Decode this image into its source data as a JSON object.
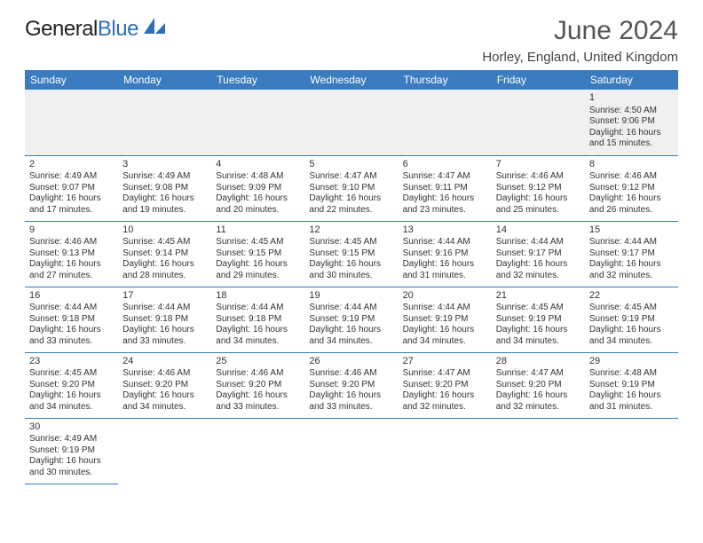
{
  "brand": {
    "part1": "General",
    "part2": "Blue"
  },
  "title": "June 2024",
  "location": "Horley, England, United Kingdom",
  "colors": {
    "header_bg": "#3b7bbf",
    "header_text": "#ffffff",
    "brand_blue": "#2d6fb8",
    "text": "#333333",
    "firstrow_bg": "#f0f0f0",
    "border": "#3b7bbf"
  },
  "days_of_week": [
    "Sunday",
    "Monday",
    "Tuesday",
    "Wednesday",
    "Thursday",
    "Friday",
    "Saturday"
  ],
  "weeks": [
    [
      null,
      null,
      null,
      null,
      null,
      null,
      {
        "n": "1",
        "sr": "Sunrise: 4:50 AM",
        "ss": "Sunset: 9:06 PM",
        "d1": "Daylight: 16 hours",
        "d2": "and 15 minutes."
      }
    ],
    [
      {
        "n": "2",
        "sr": "Sunrise: 4:49 AM",
        "ss": "Sunset: 9:07 PM",
        "d1": "Daylight: 16 hours",
        "d2": "and 17 minutes."
      },
      {
        "n": "3",
        "sr": "Sunrise: 4:49 AM",
        "ss": "Sunset: 9:08 PM",
        "d1": "Daylight: 16 hours",
        "d2": "and 19 minutes."
      },
      {
        "n": "4",
        "sr": "Sunrise: 4:48 AM",
        "ss": "Sunset: 9:09 PM",
        "d1": "Daylight: 16 hours",
        "d2": "and 20 minutes."
      },
      {
        "n": "5",
        "sr": "Sunrise: 4:47 AM",
        "ss": "Sunset: 9:10 PM",
        "d1": "Daylight: 16 hours",
        "d2": "and 22 minutes."
      },
      {
        "n": "6",
        "sr": "Sunrise: 4:47 AM",
        "ss": "Sunset: 9:11 PM",
        "d1": "Daylight: 16 hours",
        "d2": "and 23 minutes."
      },
      {
        "n": "7",
        "sr": "Sunrise: 4:46 AM",
        "ss": "Sunset: 9:12 PM",
        "d1": "Daylight: 16 hours",
        "d2": "and 25 minutes."
      },
      {
        "n": "8",
        "sr": "Sunrise: 4:46 AM",
        "ss": "Sunset: 9:12 PM",
        "d1": "Daylight: 16 hours",
        "d2": "and 26 minutes."
      }
    ],
    [
      {
        "n": "9",
        "sr": "Sunrise: 4:46 AM",
        "ss": "Sunset: 9:13 PM",
        "d1": "Daylight: 16 hours",
        "d2": "and 27 minutes."
      },
      {
        "n": "10",
        "sr": "Sunrise: 4:45 AM",
        "ss": "Sunset: 9:14 PM",
        "d1": "Daylight: 16 hours",
        "d2": "and 28 minutes."
      },
      {
        "n": "11",
        "sr": "Sunrise: 4:45 AM",
        "ss": "Sunset: 9:15 PM",
        "d1": "Daylight: 16 hours",
        "d2": "and 29 minutes."
      },
      {
        "n": "12",
        "sr": "Sunrise: 4:45 AM",
        "ss": "Sunset: 9:15 PM",
        "d1": "Daylight: 16 hours",
        "d2": "and 30 minutes."
      },
      {
        "n": "13",
        "sr": "Sunrise: 4:44 AM",
        "ss": "Sunset: 9:16 PM",
        "d1": "Daylight: 16 hours",
        "d2": "and 31 minutes."
      },
      {
        "n": "14",
        "sr": "Sunrise: 4:44 AM",
        "ss": "Sunset: 9:17 PM",
        "d1": "Daylight: 16 hours",
        "d2": "and 32 minutes."
      },
      {
        "n": "15",
        "sr": "Sunrise: 4:44 AM",
        "ss": "Sunset: 9:17 PM",
        "d1": "Daylight: 16 hours",
        "d2": "and 32 minutes."
      }
    ],
    [
      {
        "n": "16",
        "sr": "Sunrise: 4:44 AM",
        "ss": "Sunset: 9:18 PM",
        "d1": "Daylight: 16 hours",
        "d2": "and 33 minutes."
      },
      {
        "n": "17",
        "sr": "Sunrise: 4:44 AM",
        "ss": "Sunset: 9:18 PM",
        "d1": "Daylight: 16 hours",
        "d2": "and 33 minutes."
      },
      {
        "n": "18",
        "sr": "Sunrise: 4:44 AM",
        "ss": "Sunset: 9:18 PM",
        "d1": "Daylight: 16 hours",
        "d2": "and 34 minutes."
      },
      {
        "n": "19",
        "sr": "Sunrise: 4:44 AM",
        "ss": "Sunset: 9:19 PM",
        "d1": "Daylight: 16 hours",
        "d2": "and 34 minutes."
      },
      {
        "n": "20",
        "sr": "Sunrise: 4:44 AM",
        "ss": "Sunset: 9:19 PM",
        "d1": "Daylight: 16 hours",
        "d2": "and 34 minutes."
      },
      {
        "n": "21",
        "sr": "Sunrise: 4:45 AM",
        "ss": "Sunset: 9:19 PM",
        "d1": "Daylight: 16 hours",
        "d2": "and 34 minutes."
      },
      {
        "n": "22",
        "sr": "Sunrise: 4:45 AM",
        "ss": "Sunset: 9:19 PM",
        "d1": "Daylight: 16 hours",
        "d2": "and 34 minutes."
      }
    ],
    [
      {
        "n": "23",
        "sr": "Sunrise: 4:45 AM",
        "ss": "Sunset: 9:20 PM",
        "d1": "Daylight: 16 hours",
        "d2": "and 34 minutes."
      },
      {
        "n": "24",
        "sr": "Sunrise: 4:46 AM",
        "ss": "Sunset: 9:20 PM",
        "d1": "Daylight: 16 hours",
        "d2": "and 34 minutes."
      },
      {
        "n": "25",
        "sr": "Sunrise: 4:46 AM",
        "ss": "Sunset: 9:20 PM",
        "d1": "Daylight: 16 hours",
        "d2": "and 33 minutes."
      },
      {
        "n": "26",
        "sr": "Sunrise: 4:46 AM",
        "ss": "Sunset: 9:20 PM",
        "d1": "Daylight: 16 hours",
        "d2": "and 33 minutes."
      },
      {
        "n": "27",
        "sr": "Sunrise: 4:47 AM",
        "ss": "Sunset: 9:20 PM",
        "d1": "Daylight: 16 hours",
        "d2": "and 32 minutes."
      },
      {
        "n": "28",
        "sr": "Sunrise: 4:47 AM",
        "ss": "Sunset: 9:20 PM",
        "d1": "Daylight: 16 hours",
        "d2": "and 32 minutes."
      },
      {
        "n": "29",
        "sr": "Sunrise: 4:48 AM",
        "ss": "Sunset: 9:19 PM",
        "d1": "Daylight: 16 hours",
        "d2": "and 31 minutes."
      }
    ],
    [
      {
        "n": "30",
        "sr": "Sunrise: 4:49 AM",
        "ss": "Sunset: 9:19 PM",
        "d1": "Daylight: 16 hours",
        "d2": "and 30 minutes."
      },
      null,
      null,
      null,
      null,
      null,
      null
    ]
  ]
}
